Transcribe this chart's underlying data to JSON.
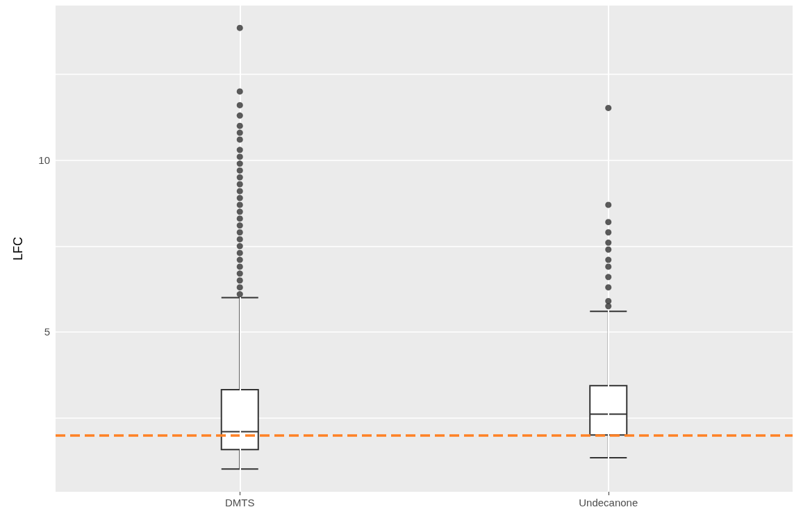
{
  "chart_data": {
    "type": "box",
    "ylabel": "LFC",
    "categories": [
      "DMTS",
      "Undecanone"
    ],
    "boxes": [
      {
        "low": 1.01,
        "q1": 1.58,
        "median": 2.1,
        "q3": 3.32,
        "high": 6.0,
        "outliers": [
          6.1,
          6.3,
          6.5,
          6.7,
          6.9,
          7.1,
          7.3,
          7.5,
          7.7,
          7.9,
          8.1,
          8.3,
          8.5,
          8.7,
          8.9,
          9.1,
          9.3,
          9.5,
          9.7,
          9.9,
          10.1,
          10.3,
          10.6,
          10.8,
          11.0,
          11.3,
          11.6,
          12.0,
          13.85
        ]
      },
      {
        "low": 1.34,
        "q1": 2.0,
        "median": 2.61,
        "q3": 3.44,
        "high": 5.6,
        "outliers": [
          5.75,
          5.9,
          6.3,
          6.6,
          6.9,
          7.1,
          7.4,
          7.6,
          7.9,
          8.2,
          8.7,
          11.52
        ]
      }
    ],
    "ylim": [
      0.35,
      14.5
    ],
    "yticks": [
      {
        "value": 2.5,
        "label": null
      },
      5,
      {
        "value": 7.5,
        "label": null
      },
      10,
      {
        "value": 12.5,
        "label": null
      }
    ],
    "ref_lines": [
      {
        "axis": "y",
        "value": 2.0,
        "color": "#ff8125",
        "line_style": "dashed"
      }
    ],
    "grid": true
  }
}
